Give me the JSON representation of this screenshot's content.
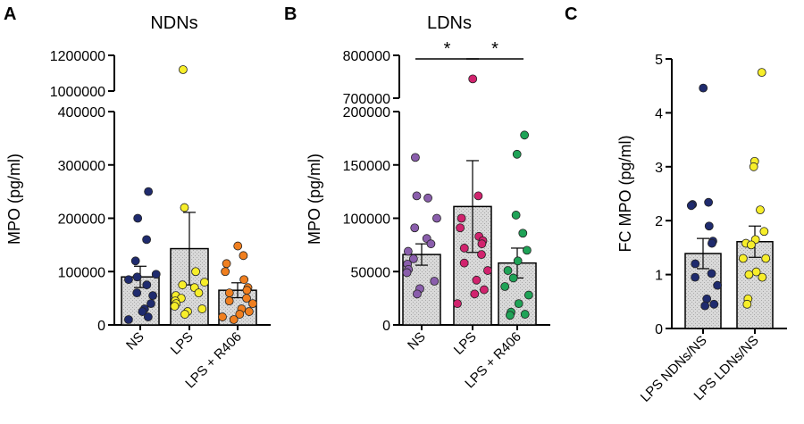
{
  "colors": {
    "bar_fill": "#d4d4d4",
    "NS": "#1f2b6e",
    "LPS": "#f7ee2a",
    "LPS_R406": "#f07f1f",
    "LDN_NS": "#8a5eac",
    "LDN_LPS": "#d1236e",
    "LDN_R406": "#1fa357"
  },
  "chart_data": [
    {
      "type": "bar",
      "panel": "A",
      "title": "NDNs",
      "ylabel": "MPO (pg/ml)",
      "xlabel": "",
      "ylim_lower": [
        0,
        400000
      ],
      "ylim_upper": [
        1000000,
        1200000
      ],
      "axis_break": true,
      "yticks_lower": [
        0,
        100000,
        200000,
        300000,
        400000
      ],
      "yticks_upper": [
        1000000,
        1200000
      ],
      "ytick_labels_lower": [
        "0",
        "100000",
        "200000",
        "300000",
        "400000"
      ],
      "ytick_labels_upper": [
        "1000000",
        "1200000"
      ],
      "categories": [
        "NS",
        "LPS",
        "LPS + R406"
      ],
      "values": [
        90000,
        143000,
        65000
      ],
      "errors": [
        20000,
        68000,
        14000
      ],
      "point_colors": [
        "#1f2b6e",
        "#f7ee2a",
        "#f07f1f"
      ],
      "points": [
        [
          250000,
          200000,
          160000,
          120000,
          95000,
          90000,
          85000,
          75000,
          60000,
          55000,
          40000,
          30000,
          25000,
          15000,
          10000
        ],
        [
          1120000,
          220000,
          100000,
          80000,
          75000,
          70000,
          60000,
          55000,
          50000,
          45000,
          40000,
          35000,
          30000,
          25000,
          20000
        ],
        [
          148000,
          130000,
          115000,
          100000,
          85000,
          70000,
          65000,
          60000,
          50000,
          45000,
          40000,
          30000,
          25000,
          20000,
          15000,
          10000
        ]
      ],
      "significance": []
    },
    {
      "type": "bar",
      "panel": "B",
      "title": "LDNs",
      "ylabel": "MPO (pg/ml)",
      "xlabel": "",
      "ylim_lower": [
        0,
        200000
      ],
      "ylim_upper": [
        700000,
        800000
      ],
      "axis_break": true,
      "yticks_lower": [
        0,
        50000,
        100000,
        150000,
        200000
      ],
      "yticks_upper": [
        700000,
        800000
      ],
      "ytick_labels_lower": [
        "0",
        "50000",
        "100000",
        "150000",
        "200000"
      ],
      "ytick_labels_upper": [
        "700000",
        "800000"
      ],
      "categories": [
        "NS",
        "LPS",
        "LPS + R406"
      ],
      "values": [
        66000,
        111000,
        58000
      ],
      "errors": [
        10000,
        43000,
        14000
      ],
      "point_colors": [
        "#8a5eac",
        "#d1236e",
        "#1fa357"
      ],
      "points": [
        [
          157000,
          121000,
          119000,
          100000,
          91000,
          81000,
          76000,
          69000,
          62000,
          57000,
          52000,
          49000,
          41000,
          34000,
          29000
        ],
        [
          745000,
          121000,
          100000,
          91000,
          83000,
          79000,
          76000,
          72000,
          66000,
          58000,
          51000,
          42000,
          33000,
          29000,
          20000
        ],
        [
          178000,
          160000,
          103000,
          86000,
          70000,
          60000,
          51000,
          44000,
          36000,
          28000,
          20000,
          12000,
          10000,
          9000
        ]
      ],
      "significance": [
        {
          "from": 0,
          "to": 1,
          "label": "*"
        },
        {
          "from": 1,
          "to": 2,
          "label": "*"
        }
      ]
    },
    {
      "type": "bar",
      "panel": "C",
      "title": "",
      "ylabel": "FC MPO (pg/ml)",
      "xlabel": "",
      "ylim": [
        0,
        5
      ],
      "axis_break": false,
      "yticks": [
        0,
        1,
        2,
        3,
        4,
        5
      ],
      "ytick_labels": [
        "0",
        "1",
        "2",
        "3",
        "4",
        "5"
      ],
      "categories": [
        "LPS NDNs/NS",
        "LPS LDNs/NS"
      ],
      "values": [
        1.39,
        1.61
      ],
      "errors": [
        0.28,
        0.29
      ],
      "point_colors": [
        "#1f2b6e",
        "#f7ee2a"
      ],
      "points": [
        [
          4.46,
          2.34,
          2.3,
          2.28,
          1.9,
          1.62,
          1.58,
          1.2,
          1.02,
          0.95,
          0.8,
          0.55,
          0.45,
          0.42
        ],
        [
          4.75,
          3.1,
          3.0,
          2.2,
          1.8,
          1.65,
          1.58,
          1.55,
          1.3,
          1.3,
          1.05,
          1.0,
          0.95,
          0.55,
          0.45
        ]
      ],
      "significance": []
    }
  ]
}
